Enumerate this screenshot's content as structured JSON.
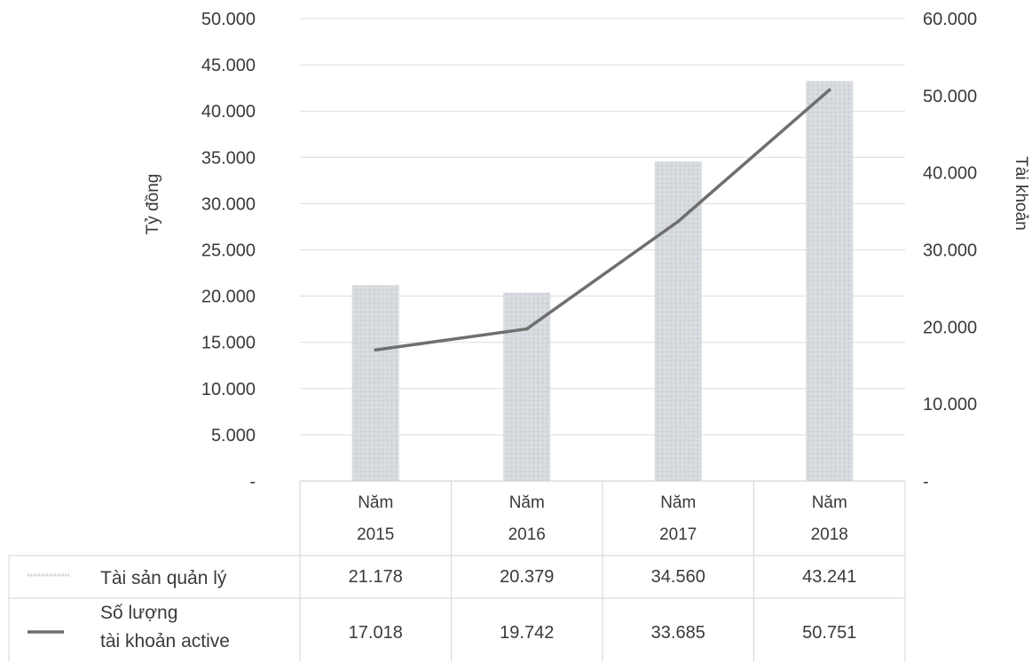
{
  "chart_data": {
    "type": "bar",
    "categories": [
      [
        "Năm",
        "2015"
      ],
      [
        "Năm",
        "2016"
      ],
      [
        "Năm",
        "2017"
      ],
      [
        "Năm",
        "2018"
      ]
    ],
    "series": [
      {
        "name": "Tài sản quản lý",
        "type": "bar",
        "axis": "left",
        "values": [
          21178,
          20379,
          34560,
          43241
        ],
        "table_values": [
          "21.178",
          "20.379",
          "34.560",
          "43.241"
        ]
      },
      {
        "name": [
          "Số lượng",
          "tài khoản active"
        ],
        "type": "line",
        "axis": "right",
        "values": [
          17018,
          19742,
          33685,
          50751
        ],
        "table_values": [
          "17.018",
          "19.742",
          "33.685",
          "50.751"
        ]
      }
    ],
    "ylabel_left": "Tỷ đồng",
    "ylabel_right": "Tài khoản",
    "ylim_left": [
      0,
      50000
    ],
    "ylim_right": [
      0,
      60000
    ],
    "yticks_left": [
      "-",
      "5.000",
      "10.000",
      "15.000",
      "20.000",
      "25.000",
      "30.000",
      "35.000",
      "40.000",
      "45.000",
      "50.000"
    ],
    "yticks_right": [
      "-",
      "10.000",
      "20.000",
      "30.000",
      "40.000",
      "50.000",
      "60.000"
    ],
    "grid": true,
    "legend": "data-table-below",
    "colors": {
      "bar": "#d4d8dc",
      "line": "#6f6f6f",
      "grid": "#dcdcdc",
      "text": "#3a3a3a"
    }
  }
}
